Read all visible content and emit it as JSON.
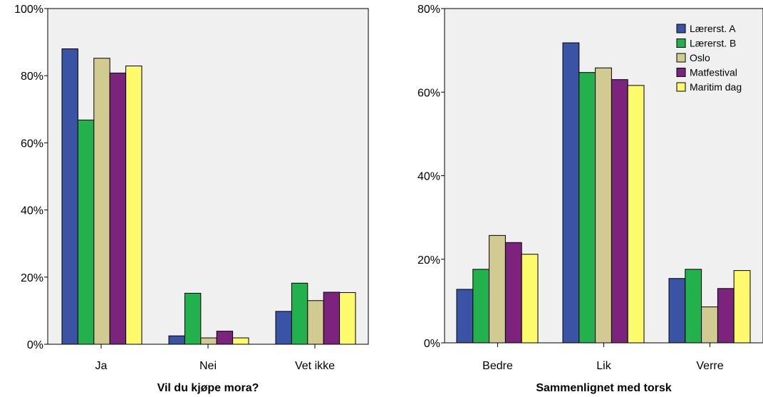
{
  "chart_data": [
    {
      "type": "bar",
      "xlabel": "Vil du kjøpe mora?",
      "ylabel": "",
      "categories": [
        "Ja",
        "Nei",
        "Vet ikke"
      ],
      "y_ticks": [
        "0%",
        "20%",
        "40%",
        "60%",
        "80%",
        "100%"
      ],
      "ylim": [
        0,
        100
      ],
      "series": [
        {
          "name": "Lærerst. A",
          "color": "#3A53A4",
          "values": [
            88,
            2.5,
            9.8
          ]
        },
        {
          "name": "Lærerst. B",
          "color": "#22B14C",
          "values": [
            66.8,
            15.2,
            18.2
          ]
        },
        {
          "name": "Oslo",
          "color": "#D1CB91",
          "values": [
            85.2,
            1.9,
            13
          ]
        },
        {
          "name": "Matfestival",
          "color": "#7C247D",
          "values": [
            80.8,
            3.9,
            15.5
          ]
        },
        {
          "name": "Maritim dag",
          "color": "#FDFA6C",
          "values": [
            82.9,
            1.9,
            15.4
          ]
        }
      ],
      "grid": false,
      "legend": "none"
    },
    {
      "type": "bar",
      "xlabel": "Sammenlignet med torsk",
      "ylabel": "",
      "categories": [
        "Bedre",
        "Lik",
        "Verre"
      ],
      "y_ticks": [
        "0%",
        "20%",
        "40%",
        "60%",
        "80%"
      ],
      "ylim": [
        0,
        80
      ],
      "series": [
        {
          "name": "Lærerst. A",
          "color": "#3A53A4",
          "values": [
            12.8,
            71.8,
            15.4
          ]
        },
        {
          "name": "Lærerst. B",
          "color": "#22B14C",
          "values": [
            17.6,
            64.7,
            17.6
          ]
        },
        {
          "name": "Oslo",
          "color": "#D1CB91",
          "values": [
            25.7,
            65.8,
            8.6
          ]
        },
        {
          "name": "Matfestival",
          "color": "#7C247D",
          "values": [
            24,
            63,
            13
          ]
        },
        {
          "name": "Maritim dag",
          "color": "#FDFA6C",
          "values": [
            21.2,
            61.6,
            17.3
          ]
        }
      ],
      "grid": false,
      "legend": "top-right"
    }
  ]
}
